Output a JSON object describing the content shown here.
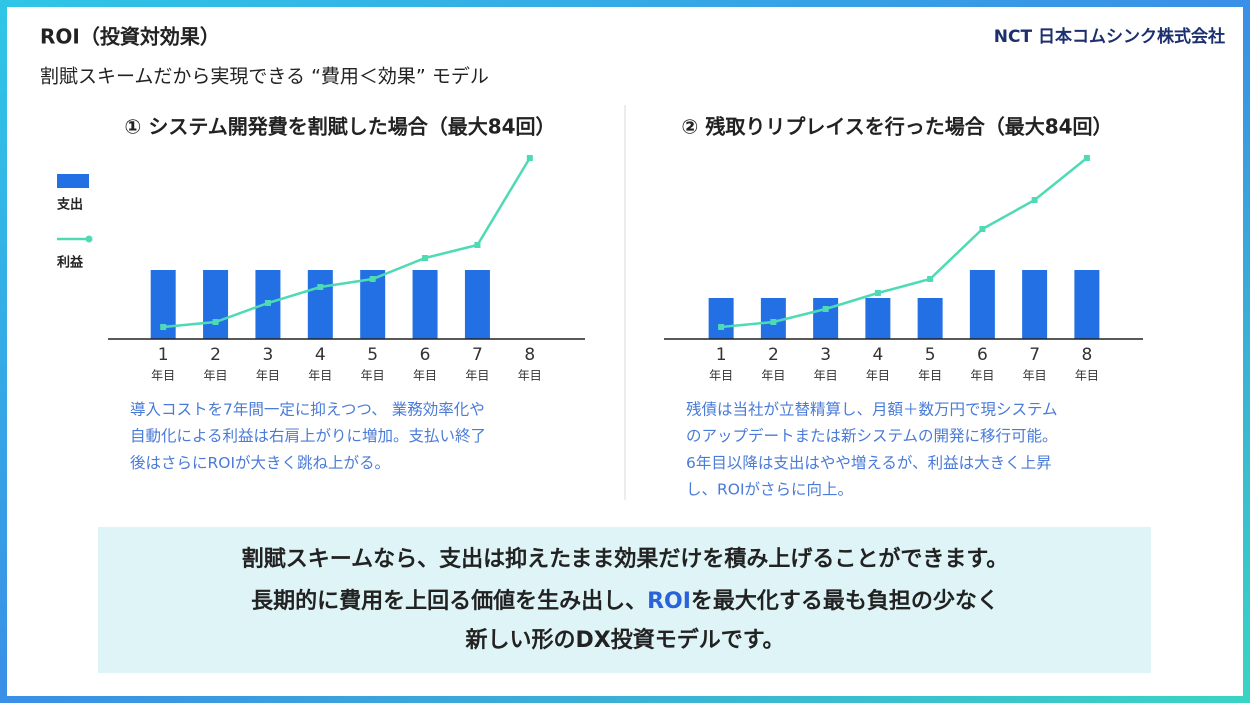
{
  "header": {
    "title": "ROI（投資対効果）",
    "subtitle": "割賦スキームだから実現できる “費用＜効果” モデル",
    "logo": "NCT 日本コムシンク株式会社"
  },
  "chart_data": [
    {
      "type": "combo",
      "title": "① システム開発費を割賦した場合（最大84回）",
      "categories": [
        "1",
        "2",
        "3",
        "4",
        "5",
        "6",
        "7",
        "8"
      ],
      "category_unit": "年目",
      "series": [
        {
          "name": "支出",
          "type": "bar",
          "color": "#2370e4",
          "values": [
            69,
            69,
            69,
            69,
            69,
            69,
            69,
            null
          ]
        },
        {
          "name": "利益",
          "type": "line",
          "color": "#4edab4",
          "values": [
            12,
            17,
            36,
            52,
            60,
            81,
            94,
            181
          ]
        }
      ],
      "ylim": [
        0,
        200
      ],
      "legend": "left"
    },
    {
      "type": "combo",
      "title": "② 残取りリプレイスを行った場合（最大84回）",
      "categories": [
        "1",
        "2",
        "3",
        "4",
        "5",
        "6",
        "7",
        "8"
      ],
      "category_unit": "年目",
      "series": [
        {
          "type": "bar",
          "color": "#2370e4",
          "values": [
            41,
            41,
            41,
            41,
            41,
            69,
            69,
            69
          ]
        },
        {
          "type": "line",
          "color": "#4edab4",
          "values": [
            12,
            17,
            30,
            46,
            60,
            110,
            139,
            181
          ]
        }
      ],
      "ylim": [
        0,
        200
      ],
      "legend": "none"
    }
  ],
  "captions": [
    [
      "導入コストを7年間一定に抑えつつ、 業務効率化や",
      "自動化による利益は右肩上がりに増加。支払い終了",
      "後はさらにROIが大きく跳ね上がる。"
    ],
    [
      "残債は当社が立替精算し、月額＋数万円で現システム",
      "のアップデートまたは新システムの開発に移行可能。",
      "6年目以降は支出はやや増えるが、利益は大きく上昇",
      "し、ROIがさらに向上。"
    ]
  ],
  "callout": {
    "line1": "割賦スキームなら、支出は抑えたまま効果だけを積み上げることができます。",
    "line2": [
      "長期的に費用を上回る価値を生み出し、",
      "ROI",
      "を最大化する最も負担の少なく"
    ],
    "line3": "新しい形のDX投資モデルです。"
  }
}
